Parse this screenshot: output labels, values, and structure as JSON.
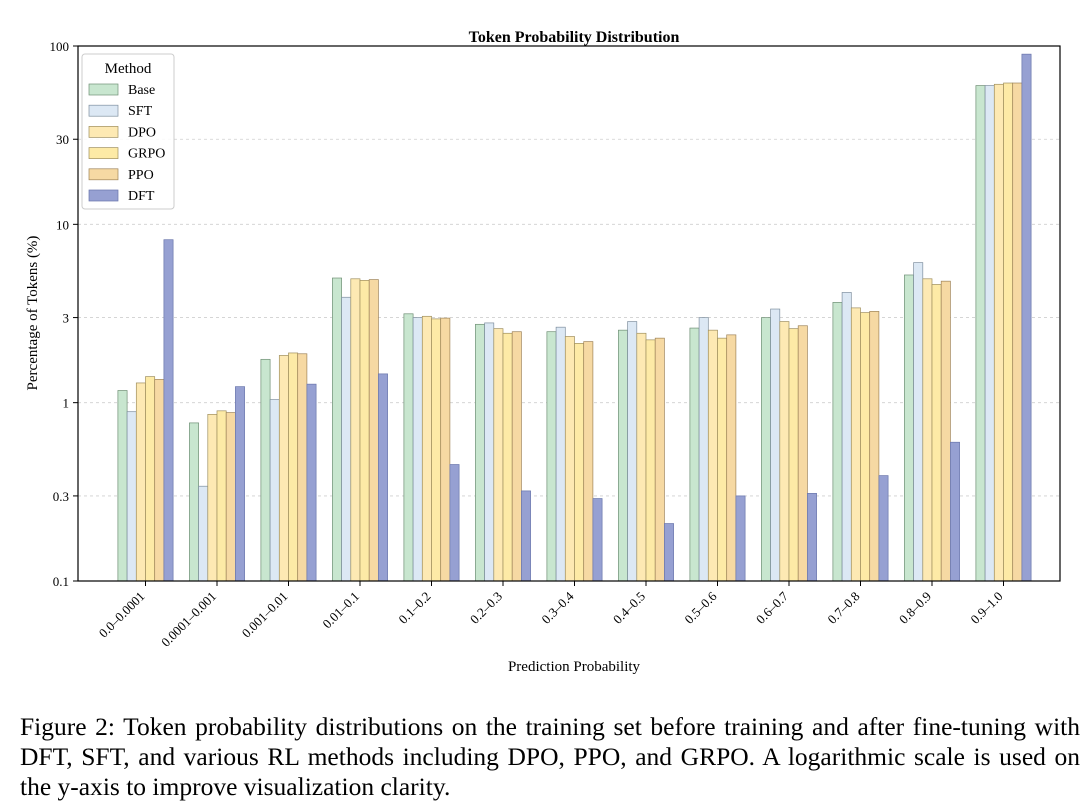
{
  "chart_data": {
    "type": "bar",
    "title": "Token Probability Distribution",
    "xlabel": "Prediction Probability",
    "ylabel": "Percentage of Tokens (%)",
    "yscale": "log",
    "ylim": [
      0.1,
      100
    ],
    "yticks": [
      0.1,
      0.3,
      1,
      3,
      10,
      30,
      100
    ],
    "ytick_labels": [
      "0.1",
      "0.3",
      "1",
      "3",
      "10",
      "30",
      "100"
    ],
    "grid": "y-dashed",
    "legend": {
      "title": "Method",
      "placement": "top-left"
    },
    "categories": [
      "0.0–0.0001",
      "0.0001–0.001",
      "0.001–0.01",
      "0.01–0.1",
      "0.1–0.2",
      "0.2–0.3",
      "0.3–0.4",
      "0.4–0.5",
      "0.5–0.6",
      "0.6–0.7",
      "0.7–0.8",
      "0.8–0.9",
      "0.9–1.0"
    ],
    "series": [
      {
        "name": "Base",
        "color": "#c8e6cf",
        "edge": "#6f8f75",
        "values": [
          1.17,
          0.77,
          1.75,
          5.0,
          3.15,
          2.75,
          2.5,
          2.55,
          2.62,
          3.0,
          3.65,
          5.2,
          60.0
        ]
      },
      {
        "name": "SFT",
        "color": "#dce8f4",
        "edge": "#7f8f9f",
        "values": [
          0.89,
          0.34,
          1.04,
          3.9,
          3.0,
          2.8,
          2.65,
          2.85,
          3.0,
          3.35,
          4.15,
          6.1,
          60.0
        ]
      },
      {
        "name": "DPO",
        "color": "#fde9b3",
        "edge": "#9f8f5f",
        "values": [
          1.29,
          0.86,
          1.84,
          4.95,
          3.05,
          2.6,
          2.35,
          2.45,
          2.55,
          2.85,
          3.4,
          4.95,
          61.0
        ]
      },
      {
        "name": "GRPO",
        "color": "#fdeaa6",
        "edge": "#9f8f5f",
        "values": [
          1.4,
          0.9,
          1.9,
          4.85,
          2.95,
          2.45,
          2.15,
          2.25,
          2.3,
          2.6,
          3.2,
          4.6,
          62.0
        ]
      },
      {
        "name": "PPO",
        "color": "#f6d9a3",
        "edge": "#9f8459",
        "values": [
          1.35,
          0.88,
          1.88,
          4.9,
          2.98,
          2.5,
          2.2,
          2.3,
          2.4,
          2.7,
          3.25,
          4.8,
          62.0
        ]
      },
      {
        "name": "DFT",
        "color": "#96a0d2",
        "edge": "#6a76ac",
        "values": [
          8.2,
          1.23,
          1.27,
          1.45,
          0.45,
          0.32,
          0.29,
          0.21,
          0.3,
          0.31,
          0.39,
          0.6,
          90.0
        ]
      }
    ]
  },
  "caption": "Figure 2: Token probability distributions on the training set before training and after fine-tuning with DFT, SFT, and various RL methods including DPO, PPO, and GRPO. A logarithmic scale is used on the y-axis to improve visualization clarity."
}
